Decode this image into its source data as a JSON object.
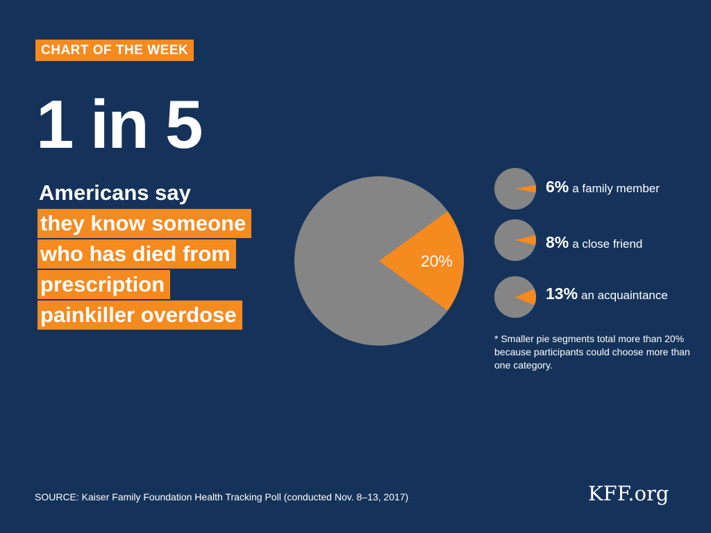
{
  "badge": "CHART OF THE WEEK",
  "big_stat": "1 in 5",
  "headline": {
    "plain": "Americans say",
    "highlight_lines": [
      "they know someone",
      "who has died from",
      "prescription",
      "painkiller overdose"
    ]
  },
  "chart_data": {
    "type": "pie",
    "main": {
      "slices": [
        {
          "label": "know someone who died",
          "value": 20,
          "color": "#f58a1f"
        },
        {
          "label": "remainder",
          "value": 80,
          "color": "#858585"
        }
      ],
      "data_label": "20%"
    },
    "breakdown": [
      {
        "value": 6,
        "pct_label": "6%",
        "label": "a family member"
      },
      {
        "value": 8,
        "pct_label": "8%",
        "label": "a close friend"
      },
      {
        "value": 13,
        "pct_label": "13%",
        "label": "an acquaintance"
      }
    ]
  },
  "footnote": "* Smaller pie segments total more than 20% because participants could choose more than one category.",
  "source": "SOURCE: Kaiser Family Foundation Health Tracking Poll (conducted Nov. 8–13, 2017)",
  "logo": "KFF.org",
  "colors": {
    "background": "#15335a",
    "accent": "#f58a1f",
    "pie_gray": "#858585",
    "text": "#ffffff"
  }
}
